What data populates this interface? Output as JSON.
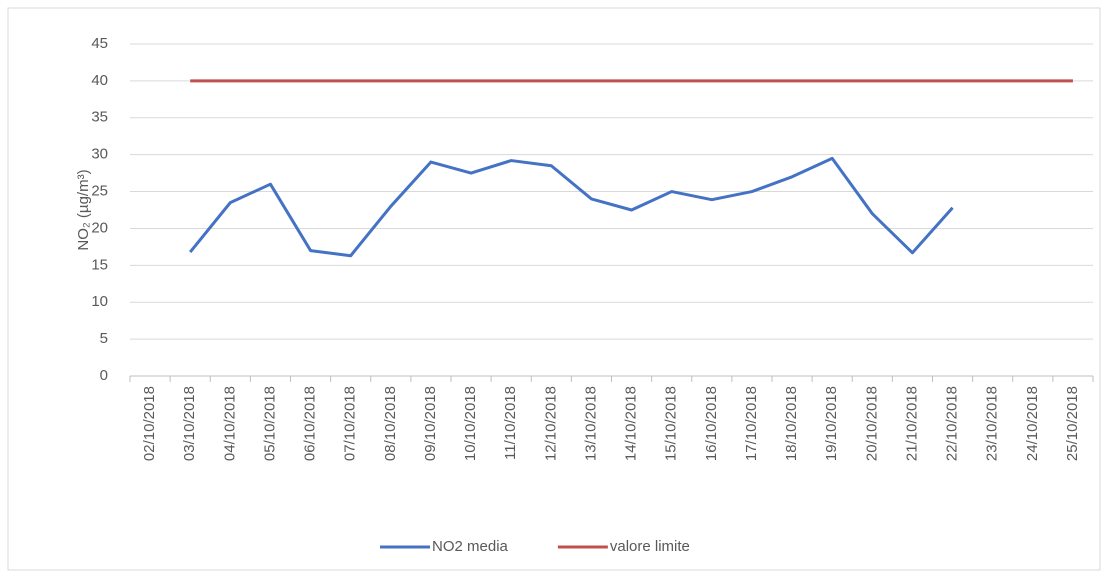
{
  "chart_data": {
    "type": "line",
    "y_label": "NO₂ (µg/m³)",
    "categories": [
      "02/10/2018",
      "03/10/2018",
      "04/10/2018",
      "05/10/2018",
      "06/10/2018",
      "07/10/2018",
      "08/10/2018",
      "09/10/2018",
      "10/10/2018",
      "11/10/2018",
      "12/10/2018",
      "13/10/2018",
      "14/10/2018",
      "15/10/2018",
      "16/10/2018",
      "17/10/2018",
      "18/10/2018",
      "19/10/2018",
      "20/10/2018",
      "21/10/2018",
      "22/10/2018",
      "23/10/2018",
      "24/10/2018",
      "25/10/2018"
    ],
    "series": [
      {
        "name": "NO2 media",
        "color": "#4472c4",
        "values": [
          null,
          16.8,
          23.5,
          26,
          17,
          16.3,
          23,
          29,
          27.5,
          29.2,
          28.5,
          24,
          22.5,
          25,
          23.9,
          25,
          27,
          29.5,
          22,
          16.7,
          22.8,
          null,
          null,
          null
        ]
      },
      {
        "name": "valore limite",
        "color": "#c0504d",
        "values": [
          null,
          40,
          40,
          40,
          40,
          40,
          40,
          40,
          40,
          40,
          40,
          40,
          40,
          40,
          40,
          40,
          40,
          40,
          40,
          40,
          40,
          40,
          40,
          40
        ]
      }
    ],
    "ylim": [
      0,
      45
    ],
    "yticks": [
      0,
      5,
      10,
      15,
      20,
      25,
      30,
      35,
      40,
      45
    ],
    "grid": true,
    "legend": "bottom"
  }
}
